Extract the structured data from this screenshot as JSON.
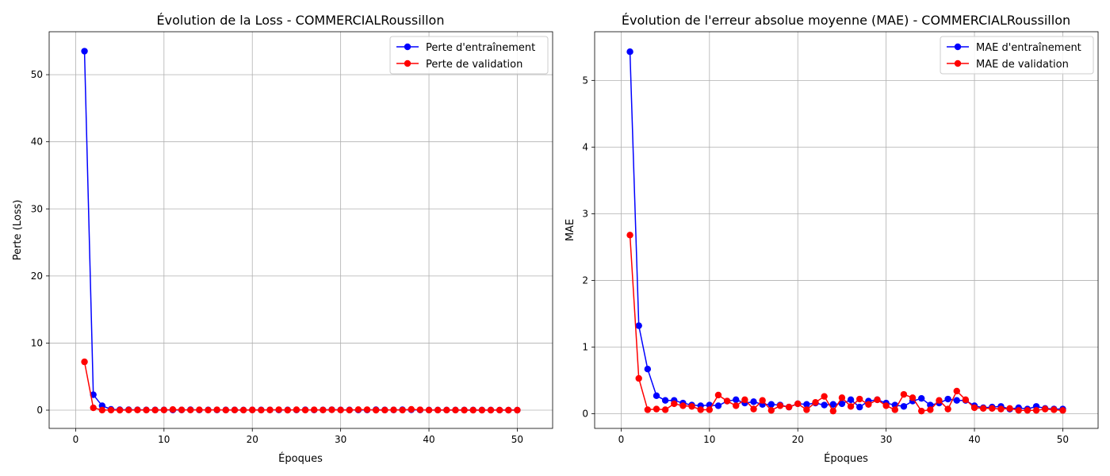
{
  "colors": {
    "train": "#0000ff",
    "val": "#ff0000",
    "grid": "#b0b0b0",
    "frame": "#000000"
  },
  "chart_data": [
    {
      "type": "line",
      "title": "Évolution de la Loss - COMMERCIALRoussillon",
      "xlabel": "Époques",
      "ylabel": "Perte (Loss)",
      "xlim": [
        -3.0,
        54.0
      ],
      "ylim": [
        -2.72,
        56.4
      ],
      "xticks": [
        0,
        10,
        20,
        30,
        40,
        50
      ],
      "yticks": [
        0,
        10,
        20,
        30,
        40,
        50
      ],
      "grid": true,
      "legend": "top-right",
      "x": [
        1,
        2,
        3,
        4,
        5,
        6,
        7,
        8,
        9,
        10,
        11,
        12,
        13,
        14,
        15,
        16,
        17,
        18,
        19,
        20,
        21,
        22,
        23,
        24,
        25,
        26,
        27,
        28,
        29,
        30,
        31,
        32,
        33,
        34,
        35,
        36,
        37,
        38,
        39,
        40,
        41,
        42,
        43,
        44,
        45,
        46,
        47,
        48,
        49,
        50
      ],
      "series": [
        {
          "name": "Perte d'entraînement",
          "color": "#0000ff",
          "values": [
            53.5,
            2.3,
            0.65,
            0.12,
            0.06,
            0.06,
            0.05,
            0.04,
            0.03,
            0.04,
            0.02,
            0.03,
            0.06,
            0.03,
            0.04,
            0.03,
            0.03,
            0.03,
            0.02,
            0.04,
            0.03,
            0.04,
            0.02,
            0.03,
            0.03,
            0.05,
            0.02,
            0.04,
            0.07,
            0.04,
            0.03,
            0.02,
            0.03,
            0.06,
            0.03,
            0.03,
            0.06,
            0.05,
            0.03,
            0.02,
            0.02,
            0.02,
            0.02,
            0.02,
            0.02,
            0.02,
            0.02,
            0.01,
            0.01,
            0.01
          ]
        },
        {
          "name": "Perte de validation",
          "color": "#ff0000",
          "values": [
            7.2,
            0.35,
            0.01,
            0.01,
            0.0,
            0.02,
            0.02,
            0.01,
            0.01,
            0.02,
            0.09,
            0.04,
            0.02,
            0.05,
            0.01,
            0.05,
            0.01,
            0.02,
            0.01,
            0.03,
            0.01,
            0.03,
            0.07,
            0.0,
            0.06,
            0.01,
            0.05,
            0.02,
            0.05,
            0.02,
            0.01,
            0.08,
            0.07,
            0.0,
            0.01,
            0.04,
            0.01,
            0.12,
            0.05,
            0.01,
            0.01,
            0.01,
            0.01,
            0.0,
            0.0,
            0.0,
            0.0,
            0.01,
            0.0,
            0.0
          ]
        }
      ]
    },
    {
      "type": "line",
      "title": "Évolution de l'erreur absolue moyenne (MAE) - COMMERCIALRoussillon",
      "xlabel": "Époques",
      "ylabel": "MAE",
      "xlim": [
        -3.0,
        54.0
      ],
      "ylim": [
        -0.22,
        5.73
      ],
      "xticks": [
        0,
        10,
        20,
        30,
        40,
        50
      ],
      "yticks": [
        0,
        1,
        2,
        3,
        4,
        5
      ],
      "grid": true,
      "legend": "top-right",
      "x": [
        1,
        2,
        3,
        4,
        5,
        6,
        7,
        8,
        9,
        10,
        11,
        12,
        13,
        14,
        15,
        16,
        17,
        18,
        19,
        20,
        21,
        22,
        23,
        24,
        25,
        26,
        27,
        28,
        29,
        30,
        31,
        32,
        33,
        34,
        35,
        36,
        37,
        38,
        39,
        40,
        41,
        42,
        43,
        44,
        45,
        46,
        47,
        48,
        49,
        50
      ],
      "series": [
        {
          "name": "MAE d'entraînement",
          "color": "#0000ff",
          "values": [
            5.43,
            1.32,
            0.67,
            0.27,
            0.2,
            0.2,
            0.16,
            0.13,
            0.12,
            0.13,
            0.12,
            0.19,
            0.21,
            0.16,
            0.18,
            0.14,
            0.14,
            0.13,
            0.1,
            0.15,
            0.14,
            0.16,
            0.13,
            0.14,
            0.15,
            0.21,
            0.1,
            0.19,
            0.21,
            0.16,
            0.13,
            0.11,
            0.19,
            0.23,
            0.13,
            0.16,
            0.22,
            0.2,
            0.2,
            0.12,
            0.09,
            0.1,
            0.11,
            0.07,
            0.09,
            0.07,
            0.11,
            0.08,
            0.07,
            0.07
          ]
        },
        {
          "name": "MAE de validation",
          "color": "#ff0000",
          "values": [
            2.68,
            0.53,
            0.06,
            0.07,
            0.06,
            0.15,
            0.12,
            0.11,
            0.06,
            0.06,
            0.28,
            0.19,
            0.12,
            0.21,
            0.07,
            0.2,
            0.05,
            0.12,
            0.1,
            0.15,
            0.06,
            0.17,
            0.26,
            0.04,
            0.24,
            0.11,
            0.22,
            0.14,
            0.21,
            0.12,
            0.06,
            0.29,
            0.24,
            0.04,
            0.06,
            0.2,
            0.07,
            0.34,
            0.21,
            0.09,
            0.08,
            0.08,
            0.07,
            0.08,
            0.05,
            0.05,
            0.05,
            0.07,
            0.06,
            0.05
          ]
        }
      ]
    }
  ]
}
